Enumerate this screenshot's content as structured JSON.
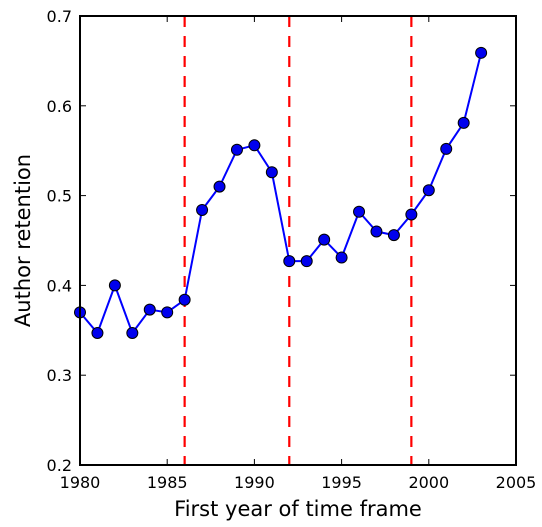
{
  "chart_data": {
    "type": "line",
    "title": "",
    "xlabel": "First year of time frame",
    "ylabel": "Author retention",
    "xlim": [
      1980,
      2005
    ],
    "ylim": [
      0.2,
      0.7
    ],
    "x_ticks": [
      1980,
      1985,
      1990,
      1995,
      2000,
      2005
    ],
    "y_ticks": [
      0.2,
      0.3,
      0.4,
      0.5,
      0.6,
      0.7
    ],
    "x_tick_labels": [
      "1980",
      "1985",
      "1990",
      "1995",
      "2000",
      "2005"
    ],
    "y_tick_labels": [
      "0.2",
      "0.3",
      "0.4",
      "0.5",
      "0.6",
      "0.7"
    ],
    "grid": false,
    "legend": "none",
    "series": [
      {
        "color": "#0000ff",
        "marker_color": "#0000ee",
        "x": [
          1980,
          1981,
          1982,
          1983,
          1984,
          1985,
          1986,
          1987,
          1988,
          1989,
          1990,
          1991,
          1992,
          1993,
          1994,
          1995,
          1996,
          1997,
          1998,
          1999,
          2000,
          2001,
          2002,
          2003
        ],
        "y": [
          0.37,
          0.347,
          0.4,
          0.347,
          0.373,
          0.37,
          0.384,
          0.484,
          0.51,
          0.551,
          0.556,
          0.526,
          0.427,
          0.427,
          0.451,
          0.431,
          0.482,
          0.46,
          0.456,
          0.479,
          0.506,
          0.552,
          0.581,
          0.659
        ]
      }
    ],
    "vertical_lines": {
      "x": [
        1986,
        1992,
        1999
      ],
      "color": "#ff0000",
      "style": "dashed"
    }
  }
}
